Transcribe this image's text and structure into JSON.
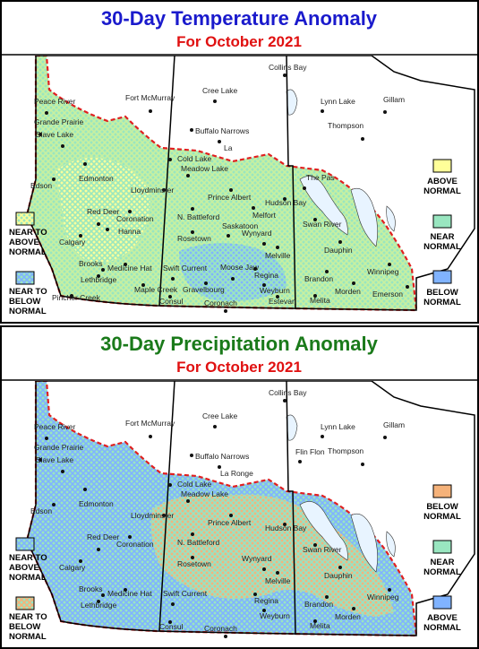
{
  "panels": [
    {
      "title": "30-Day Temperature Anomaly",
      "subtitle": "For October 2021",
      "cities": [
        "Collins Bay",
        "Peace River",
        "Fort McMurray",
        "Cree Lake",
        "Lynn Lake",
        "Gillam",
        "Grande Prairie",
        "Buffalo Narrows",
        "Thompson",
        "Slave Lake",
        "La",
        "Cold Lake",
        "Meadow Lake",
        "Edmonton",
        "Lloydminster",
        "The Pas",
        "Prince Albert",
        "Hudson Bay",
        "Edson",
        "Melfort",
        "Red Deer",
        "N. Battleford",
        "Saskatoon",
        "Swan River",
        "Coronation",
        "Hanna",
        "Rosetown",
        "Wynyard",
        "Dauphin",
        "Calgary",
        "Melville",
        "Brooks",
        "Medicine Hat",
        "Swift Current",
        "Moose Jaw",
        "Regina",
        "Brandon",
        "Winnipeg",
        "Lethbridge",
        "Maple Creek",
        "Gravelbourg",
        "Weyburn",
        "Morden",
        "Emerson",
        "Pincher Creek",
        "Consul",
        "Coronach",
        "Estevan",
        "Melita"
      ],
      "legend_right": [
        {
          "lines": [
            "ABOVE",
            "NORMAL"
          ],
          "color": "#ffff99"
        },
        {
          "lines": [
            "NEAR",
            "NORMAL"
          ],
          "color": "#99e6c0"
        },
        {
          "lines": [
            "BELOW",
            "NORMAL"
          ],
          "color": "#80b3ff"
        }
      ],
      "legend_left": [
        {
          "lines": [
            "NEAR TO",
            "ABOVE",
            "NORMAL"
          ],
          "color": "#99e6c0",
          "hatch": "#ffff99"
        },
        {
          "lines": [
            "NEAR TO",
            "BELOW",
            "NORMAL"
          ],
          "color": "#99e6c0",
          "hatch": "#80b3ff"
        }
      ]
    },
    {
      "title": "30-Day Precipitation Anomaly",
      "subtitle": "For October 2021",
      "cities": [
        "Collins Bay",
        "Peace River",
        "Fort McMurray",
        "Cree Lake",
        "Lynn Lake",
        "Gillam",
        "Grande Prairie",
        "Buffalo Narrows",
        "Thompson",
        "Slave Lake",
        "La Ronge",
        "Cold Lake",
        "Meadow Lake",
        "Edmonton",
        "Lloydminster",
        "Flin Flon",
        "Prince Albert",
        "Hudson Bay",
        "Edson",
        "Red Deer",
        "N. Battleford",
        "Swan River",
        "Coronation",
        "Rosetown",
        "Wynyard",
        "Dauphin",
        "Calgary",
        "Melville",
        "Brooks",
        "Medicine Hat",
        "Swift Current",
        "Regina",
        "Brandon",
        "Winnipeg",
        "Lethbridge",
        "Weyburn",
        "Morden",
        "Consul",
        "Coronach",
        "Melita"
      ],
      "legend_right": [
        {
          "lines": [
            "BELOW",
            "NORMAL"
          ],
          "color": "#f5b27a"
        },
        {
          "lines": [
            "NEAR",
            "NORMAL"
          ],
          "color": "#99e6c0"
        },
        {
          "lines": [
            "ABOVE",
            "NORMAL"
          ],
          "color": "#80b3ff"
        }
      ],
      "legend_left": [
        {
          "lines": [
            "NEAR TO",
            "ABOVE",
            "NORMAL"
          ],
          "color": "#99e6c0",
          "hatch": "#80b3ff"
        },
        {
          "lines": [
            "NEAR TO",
            "BELOW",
            "NORMAL"
          ],
          "color": "#99e6c0",
          "hatch": "#f5b27a"
        }
      ]
    }
  ]
}
